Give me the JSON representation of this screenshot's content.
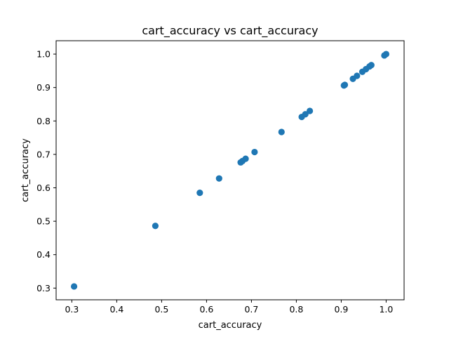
{
  "chart_data": {
    "type": "scatter",
    "title": "cart_accuracy vs cart_accuracy",
    "xlabel": "cart_accuracy",
    "ylabel": "cart_accuracy",
    "xlim": [
      0.265,
      1.04
    ],
    "ylim": [
      0.265,
      1.04
    ],
    "x_ticks": [
      "0.3",
      "0.4",
      "0.5",
      "0.6",
      "0.7",
      "0.8",
      "0.9",
      "1.0"
    ],
    "y_ticks": [
      "0.3",
      "0.4",
      "0.5",
      "0.6",
      "0.7",
      "0.8",
      "0.9",
      "1.0"
    ],
    "grid": false,
    "marker_color": "#1f77b4",
    "series": [
      {
        "x": [
          0.305,
          0.486,
          0.585,
          0.628,
          0.676,
          0.68,
          0.687,
          0.707,
          0.767,
          0.812,
          0.82,
          0.83,
          0.906,
          0.908,
          0.926,
          0.935,
          0.947,
          0.955,
          0.963,
          0.967,
          0.996,
          1.0
        ],
        "y": [
          0.305,
          0.486,
          0.585,
          0.628,
          0.676,
          0.68,
          0.687,
          0.707,
          0.767,
          0.812,
          0.82,
          0.83,
          0.906,
          0.908,
          0.926,
          0.935,
          0.947,
          0.955,
          0.963,
          0.967,
          0.996,
          1.0
        ]
      }
    ]
  }
}
